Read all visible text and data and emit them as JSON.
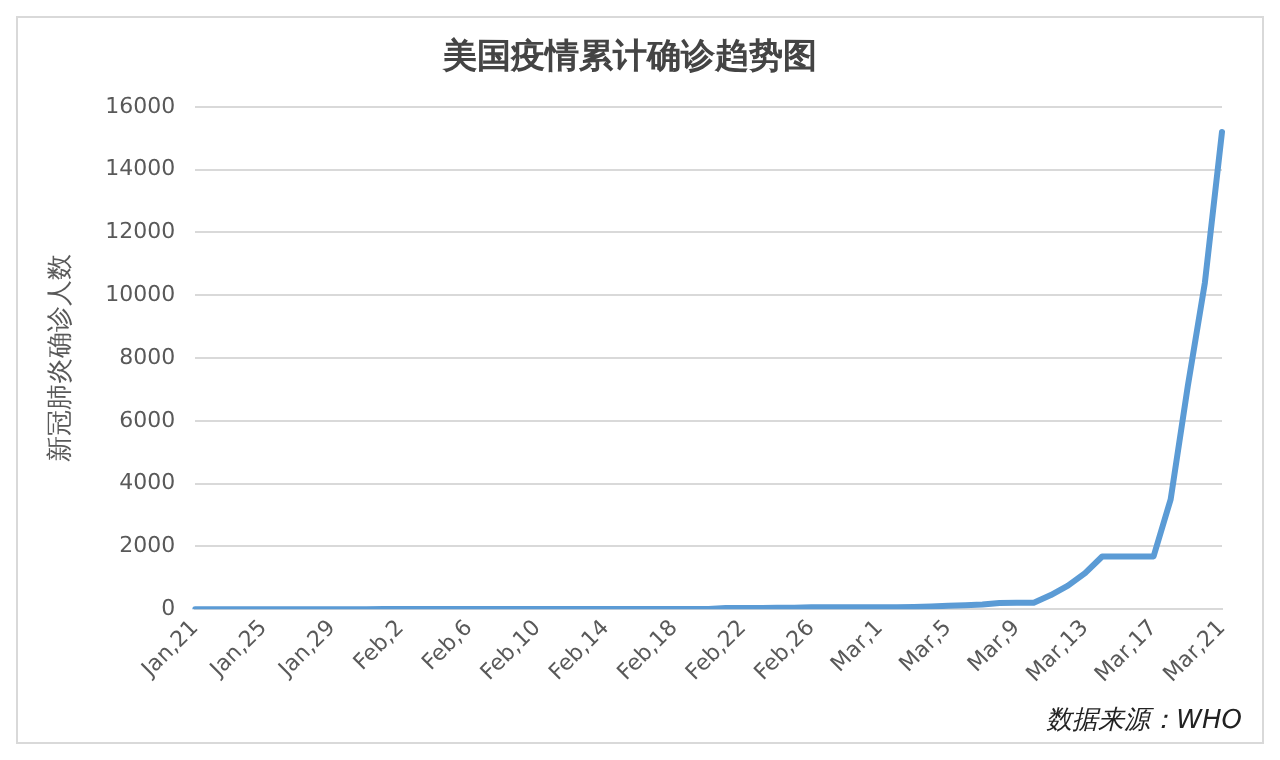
{
  "chart_data": {
    "type": "line",
    "title": "美国疫情累计确诊趋势图",
    "ylabel": "新冠肺炎确诊人数",
    "categories": [
      "Jan,21",
      null,
      null,
      null,
      "Jan,25",
      null,
      null,
      null,
      "Jan,29",
      null,
      null,
      null,
      "Feb,2",
      null,
      null,
      null,
      "Feb,6",
      null,
      null,
      null,
      "Feb,10",
      null,
      null,
      null,
      "Feb,14",
      null,
      null,
      null,
      "Feb,18",
      null,
      null,
      null,
      "Feb,22",
      null,
      null,
      null,
      "Feb,26",
      null,
      null,
      null,
      "Mar,1",
      null,
      null,
      null,
      "Mar,5",
      null,
      null,
      null,
      "Mar,9",
      null,
      null,
      null,
      "Mar,13",
      null,
      null,
      null,
      "Mar,17",
      null,
      null,
      null,
      "Mar,21"
    ],
    "series": [
      {
        "color": "#5b9bd5",
        "values": [
          0,
          0,
          0,
          0,
          0,
          0,
          0,
          0,
          0,
          0,
          0,
          10,
          10,
          10,
          10,
          10,
          10,
          10,
          10,
          10,
          10,
          10,
          10,
          10,
          10,
          10,
          10,
          10,
          10,
          10,
          10,
          40,
          40,
          40,
          50,
          50,
          60,
          60,
          60,
          60,
          60,
          60,
          70,
          90,
          110,
          130,
          150,
          200,
          210,
          210,
          450,
          750,
          1150,
          1680,
          1680,
          1680,
          1680,
          3500,
          7100,
          10400,
          15200
        ]
      }
    ],
    "ylim": [
      0,
      16000
    ],
    "yticks": [
      0,
      2000,
      4000,
      6000,
      8000,
      10000,
      12000,
      14000,
      16000
    ],
    "grid": "y",
    "marker": "none",
    "line_style": "solid",
    "annotations": [
      "数据来源：WHO"
    ]
  }
}
